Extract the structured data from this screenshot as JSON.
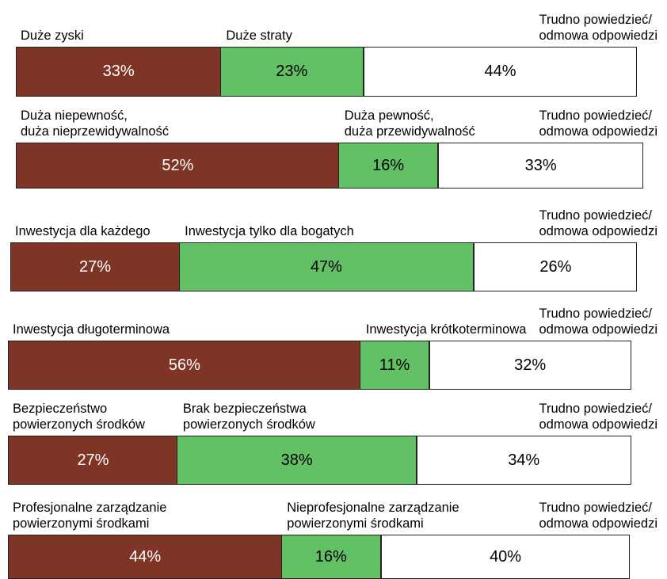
{
  "chart_data": [
    {
      "type": "bar",
      "categories": [
        "Duże zyski",
        "Duże straty",
        "Trudno powiedzieć/\nodmowa odpowiedzi"
      ],
      "values": [
        33,
        23,
        44
      ],
      "value_labels": [
        "33%",
        "23%",
        "44%"
      ],
      "colors": [
        "#7f3526",
        "#62c065",
        "#ffffff"
      ],
      "xlim": [
        0,
        100
      ]
    },
    {
      "type": "bar",
      "categories": [
        "Duża niepewność,\nduża nieprzewidywalność",
        "Duża pewność,\nduża przewidywalność",
        "Trudno powiedzieć/\nodmowa odpowiedzi"
      ],
      "values": [
        52,
        16,
        33
      ],
      "value_labels": [
        "52%",
        "16%",
        "33%"
      ],
      "colors": [
        "#7f3526",
        "#62c065",
        "#ffffff"
      ],
      "xlim": [
        0,
        100
      ]
    },
    {
      "type": "bar",
      "categories": [
        "Inwestycja dla każdego",
        "Inwestycja tylko dla bogatych",
        "Trudno powiedzieć/\nodmowa odpowiedzi"
      ],
      "values": [
        27,
        47,
        26
      ],
      "value_labels": [
        "27%",
        "47%",
        "26%"
      ],
      "colors": [
        "#7f3526",
        "#62c065",
        "#ffffff"
      ],
      "xlim": [
        0,
        100
      ]
    },
    {
      "type": "bar",
      "categories": [
        "Inwestycja długoterminowa",
        "Inwestycja krótkoterminowa",
        "Trudno powiedzieć/\nodmowa odpowiedzi"
      ],
      "values": [
        56,
        11,
        32
      ],
      "value_labels": [
        "56%",
        "11%",
        "32%"
      ],
      "colors": [
        "#7f3526",
        "#62c065",
        "#ffffff"
      ],
      "xlim": [
        0,
        100
      ]
    },
    {
      "type": "bar",
      "categories": [
        "Bezpieczeństwo\npowierzonych środków",
        "Brak bezpieczeństwa\npowierzonych środków",
        "Trudno powiedzieć/\nodmowa odpowiedzi"
      ],
      "values": [
        27,
        38,
        34
      ],
      "value_labels": [
        "27%",
        "38%",
        "34%"
      ],
      "colors": [
        "#7f3526",
        "#62c065",
        "#ffffff"
      ],
      "xlim": [
        0,
        100
      ]
    },
    {
      "type": "bar",
      "categories": [
        "Profesjonalne zarządzanie\npowierzonymi środkami",
        "Nieprofesjonalne zarządzanie\npowierzonymi środkami",
        "Trudno powiedzieć/\nodmowa odpowiedzi"
      ],
      "values": [
        44,
        16,
        40
      ],
      "value_labels": [
        "44%",
        "16%",
        "40%"
      ],
      "colors": [
        "#7f3526",
        "#62c065",
        "#ffffff"
      ],
      "xlim": [
        0,
        100
      ]
    }
  ]
}
